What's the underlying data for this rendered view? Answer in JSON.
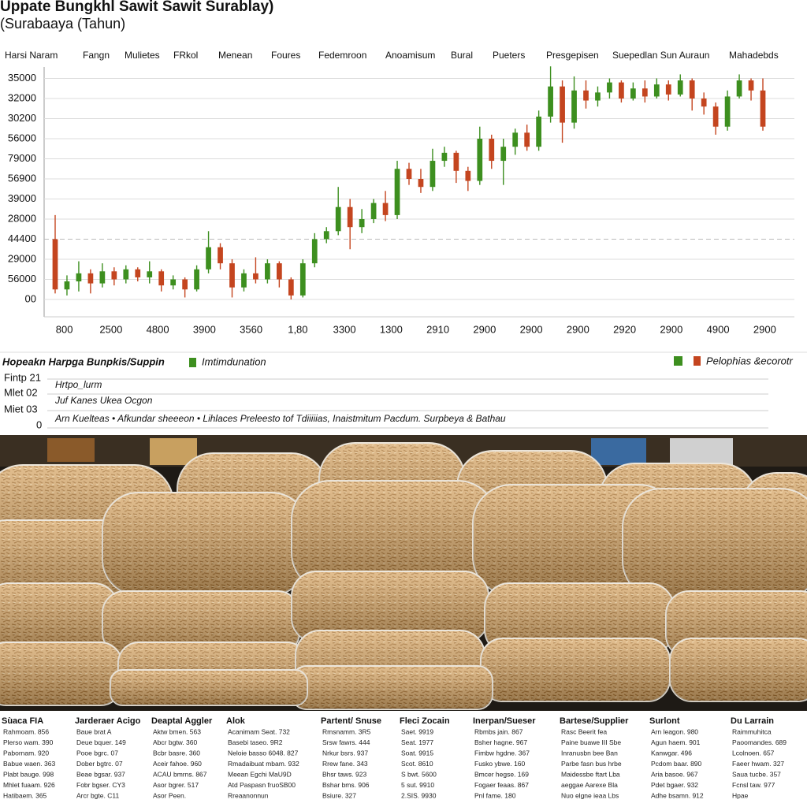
{
  "nav": [
    "Harsi Naram",
    "Fangn",
    "Mulietes",
    "FRkol",
    "Menean",
    "Foures",
    "Fedemroon",
    "Anoamisum",
    "Bural",
    "Pueters",
    "Presgepisen",
    "Suepedlan Sun Auraun",
    "Mahadebds"
  ],
  "chart_data": {
    "type": "candlestick",
    "title": "Uppate Bungkhl Sawit Sawit Surablay)",
    "subtitle": "(Surabaaya (Tahun)",
    "y_axis_labels": [
      "00",
      "56000",
      "29000",
      "44400",
      "28000",
      "39000",
      "56900",
      "79000",
      "56000",
      "30200",
      "32000",
      "35000"
    ],
    "x_axis_labels": [
      "800",
      "2500",
      "4800",
      "3900",
      "3560",
      "1,80",
      "3300",
      "1300",
      "2910",
      "2900",
      "2900",
      "2900",
      "2920",
      "2900",
      "4900",
      "2900"
    ],
    "ylim": [
      0,
      12
    ],
    "yticks": [
      0,
      1,
      2,
      3,
      4,
      5,
      6,
      7,
      8,
      9,
      10,
      11
    ],
    "grid": true,
    "series": [
      {
        "name": "Imtimdunation",
        "color": "#3d8f1f"
      },
      {
        "name": "Pelophias &ecorotr",
        "color": "#c4451f"
      }
    ],
    "legend_title": "Hopeakn Harpga Bunpkis/Suppin",
    "open": [
      3.0,
      0.5,
      0.9,
      1.3,
      0.8,
      1.4,
      1.0,
      1.5,
      1.1,
      1.4,
      0.7,
      1.0,
      0.5,
      1.5,
      2.6,
      1.8,
      0.6,
      1.3,
      1.0,
      1.8,
      1.0,
      0.2,
      1.8,
      3.0,
      3.4,
      4.6,
      3.6,
      4.0,
      4.8,
      4.2,
      6.5,
      6.0,
      5.6,
      6.9,
      7.3,
      6.4,
      5.9,
      8.0,
      6.9,
      7.6,
      8.3,
      7.6,
      9.1,
      10.6,
      8.8,
      10.4,
      9.9,
      10.3,
      10.8,
      10.0,
      10.5,
      10.1,
      10.7,
      10.2,
      10.9,
      10.0,
      9.6,
      8.6,
      10.1,
      10.9,
      10.4
    ],
    "high": [
      4.2,
      1.2,
      1.9,
      1.5,
      1.8,
      1.6,
      1.7,
      1.6,
      1.9,
      1.5,
      1.2,
      1.1,
      1.7,
      3.4,
      2.8,
      2.0,
      1.5,
      2.1,
      2.0,
      1.9,
      1.1,
      2.0,
      3.3,
      3.6,
      5.6,
      5.0,
      4.5,
      5.0,
      5.4,
      6.9,
      6.8,
      6.5,
      7.5,
      7.6,
      7.4,
      6.6,
      8.6,
      8.2,
      8.0,
      8.5,
      8.7,
      9.4,
      11.6,
      10.9,
      11.1,
      10.9,
      10.6,
      11.0,
      10.9,
      10.8,
      10.9,
      11.0,
      10.9,
      11.2,
      11.0,
      10.3,
      9.8,
      10.4,
      11.2,
      11.0,
      11.0
    ],
    "low": [
      0.3,
      0.2,
      0.4,
      0.3,
      0.6,
      0.7,
      0.8,
      0.9,
      0.8,
      0.4,
      0.5,
      0.1,
      0.4,
      1.3,
      1.5,
      0.1,
      0.4,
      0.8,
      0.8,
      0.6,
      0.0,
      0.1,
      1.6,
      2.8,
      3.2,
      2.5,
      3.3,
      3.8,
      3.9,
      4.0,
      5.7,
      5.3,
      5.4,
      6.6,
      5.8,
      5.4,
      5.7,
      6.5,
      5.7,
      7.2,
      7.4,
      7.4,
      8.8,
      7.8,
      8.5,
      9.5,
      9.6,
      10.0,
      9.8,
      9.9,
      9.8,
      10.0,
      9.9,
      10.1,
      9.4,
      9.2,
      8.2,
      8.4,
      10.0,
      9.9,
      8.4
    ],
    "close": [
      0.5,
      0.9,
      1.3,
      0.8,
      1.4,
      1.0,
      1.5,
      1.1,
      1.4,
      0.7,
      1.0,
      0.5,
      1.5,
      2.6,
      1.8,
      0.6,
      1.3,
      1.0,
      1.8,
      1.0,
      0.2,
      1.8,
      3.0,
      3.4,
      4.6,
      3.6,
      4.0,
      4.8,
      4.2,
      6.5,
      6.0,
      5.6,
      6.9,
      7.3,
      6.4,
      5.9,
      8.0,
      6.9,
      7.6,
      8.3,
      7.6,
      9.1,
      10.6,
      8.8,
      10.4,
      9.9,
      10.3,
      10.8,
      10.0,
      10.5,
      10.1,
      10.7,
      10.2,
      10.9,
      10.0,
      9.6,
      8.6,
      10.1,
      10.9,
      10.4,
      8.6
    ]
  },
  "notes": {
    "labels": [
      "Fintp 21",
      "Mlet 02",
      "Miet 03",
      "0"
    ],
    "rows": [
      "Hrtpo_lurm",
      "Juf Kanes  Ukea Ocgon",
      "Arn Kuelteas • Afkundar sheeeon • Lihlaces  Preleesto tof Tdiiiiias, Inaistmitum Pacdum. Surpbeya & Bathau"
    ]
  },
  "table": {
    "headers": [
      "Sùaca FIA",
      "Jarderaer Acigo",
      "Deaptal Aggler",
      "Alok",
      "Partent/ Snuse",
      "Fleci Zocain",
      "Inerpan/Sueser",
      "Bartese/Supplier",
      "Surlont",
      "Du Larrain"
    ],
    "rows": [
      [
        "Rahmoam. 856",
        "Baue brat A",
        "Aktw bmen. 563",
        "Acanimam Seat. 732",
        "Rmsnamm. 3R5",
        "Saet. 9919",
        "Rbmbs jain. 867",
        "Rasc Beerit fea",
        "Arn leagon. 980",
        "Raimmuhitca"
      ],
      [
        "Plerso wam. 390",
        "Deue bquer. 149",
        "Abcr bgtw. 360",
        "Basebi taseo. 9R2",
        "Srsw fawrs. 444",
        "Seat. 1977",
        "Bsher hagne. 967",
        "Paine buawe III Sbe",
        "Agun haem. 901",
        "Paoomandes. 689"
      ],
      [
        "Pabornam. 920",
        "Pooe bgrc. 07",
        "Bcbr basre. 360",
        "Neloie basso 6048. 827",
        "Nrkur bsrs. 937",
        "Soat. 9915",
        "Fimbw hgdne. 367",
        "Inranusbn bee Ban",
        "Kanwgar. 496",
        "Lcolnoen. 657"
      ],
      [
        "Babue waen. 363",
        "Dober bgtrc. 07",
        "Aceir fahoe. 960",
        "Rmadaibuat mbam. 932",
        "Rrew fane. 343",
        "Scot. 8610",
        "Fusko ybwe. 160",
        "Parbe fasn bus hrbe",
        "Pcdom baar. 890",
        "Faeer hwam. 327"
      ],
      [
        "Plabt bauge. 998",
        "Beae bgsar. 937",
        "ACAU bmrns. 867",
        "Meean Egchi MaU9D",
        "Bhsr taws. 923",
        "S bwt. 5600",
        "Bmcer hegse. 169",
        "Maidessbe ftart Lba",
        "Aria basoe. 967",
        "Saua tucbe. 357"
      ],
      [
        "Mhlet fuaam. 926",
        "Fobr bgser. CY3",
        "Asor bgrer. 517",
        "Atd Paspasn fruoSB00",
        "Bshar bms. 906",
        "5 sut. 9910",
        "Fogaer feaas. 867",
        "aeggae Aarexe Bla",
        "Pdet bgaer. 932",
        "Fcnsl taw. 977"
      ],
      [
        "Hatibaem. 365",
        "Arcr bgte. C11",
        "Asor Peen.",
        "Rreaanonnun",
        "Bsiure. 327",
        "2.SIS. 9930",
        "Pnl fame. 180",
        "Nuo elgne ieaa Lbs",
        "Adhe bsamn. 912",
        "Hpae"
      ]
    ]
  }
}
